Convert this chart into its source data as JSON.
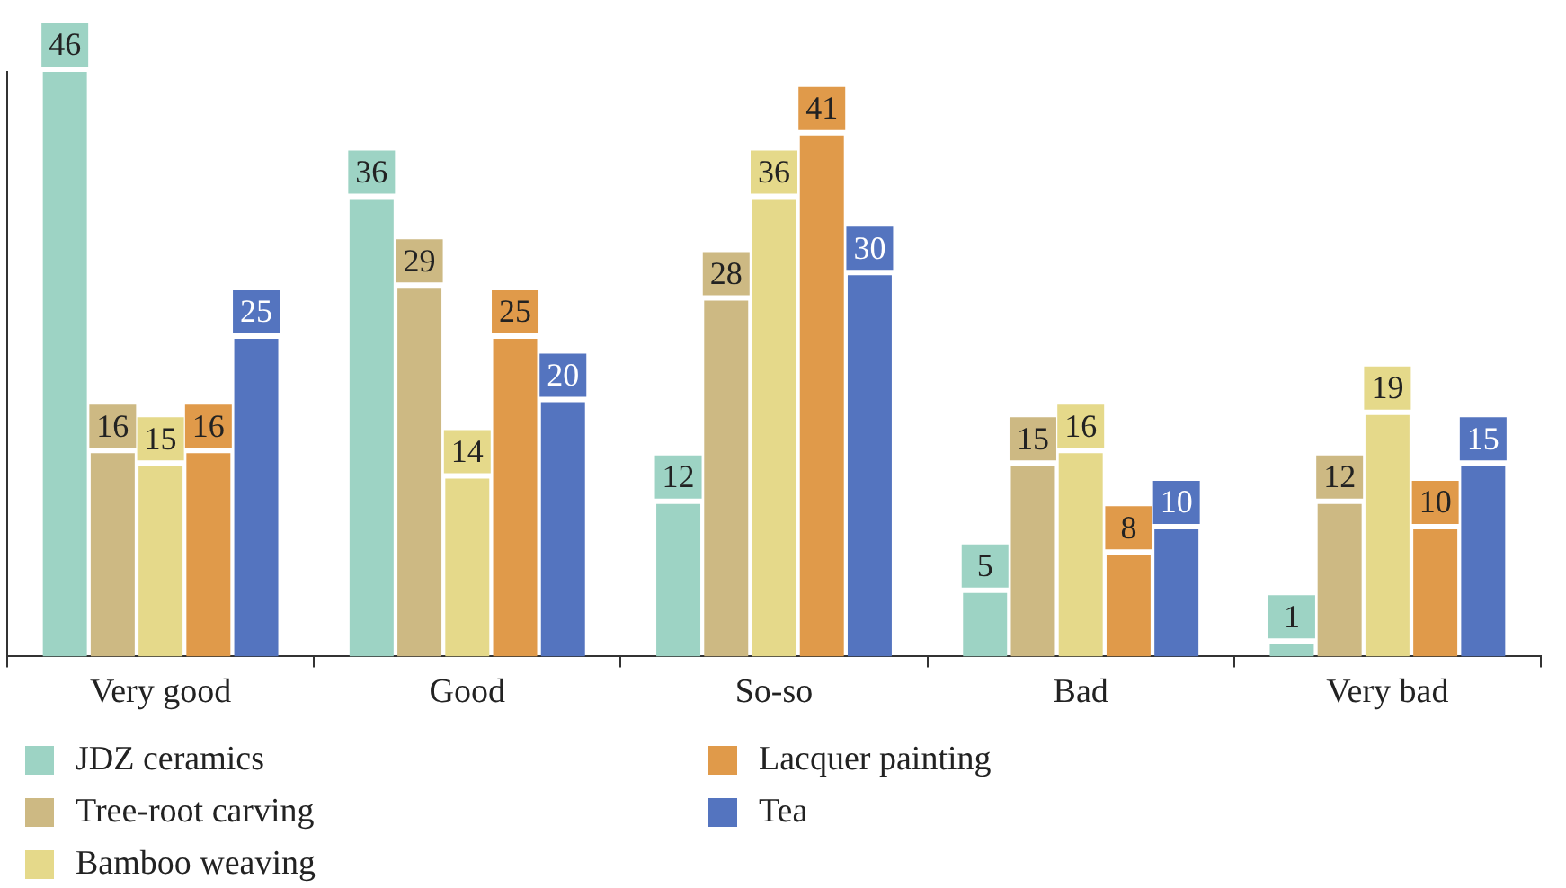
{
  "chart_data": {
    "type": "bar",
    "categories": [
      "Very good",
      "Good",
      "So-so",
      "Bad",
      "Very bad"
    ],
    "series": [
      {
        "name": "JDZ ceramics",
        "color": "#9dd3c4",
        "values": [
          46,
          36,
          12,
          5,
          1
        ]
      },
      {
        "name": "Tree-root carving",
        "color": "#cdb983",
        "values": [
          16,
          29,
          28,
          15,
          12
        ]
      },
      {
        "name": "Bamboo weaving",
        "color": "#e5d98a",
        "values": [
          15,
          14,
          36,
          16,
          19
        ]
      },
      {
        "name": "Lacquer painting",
        "color": "#e09a4a",
        "values": [
          16,
          25,
          41,
          8,
          10
        ]
      },
      {
        "name": "Tea",
        "color": "#5474bf",
        "values": [
          25,
          20,
          30,
          10,
          15
        ]
      }
    ],
    "data_labels": true,
    "legend": "bottom",
    "grid": false,
    "tick_labels": "x"
  }
}
